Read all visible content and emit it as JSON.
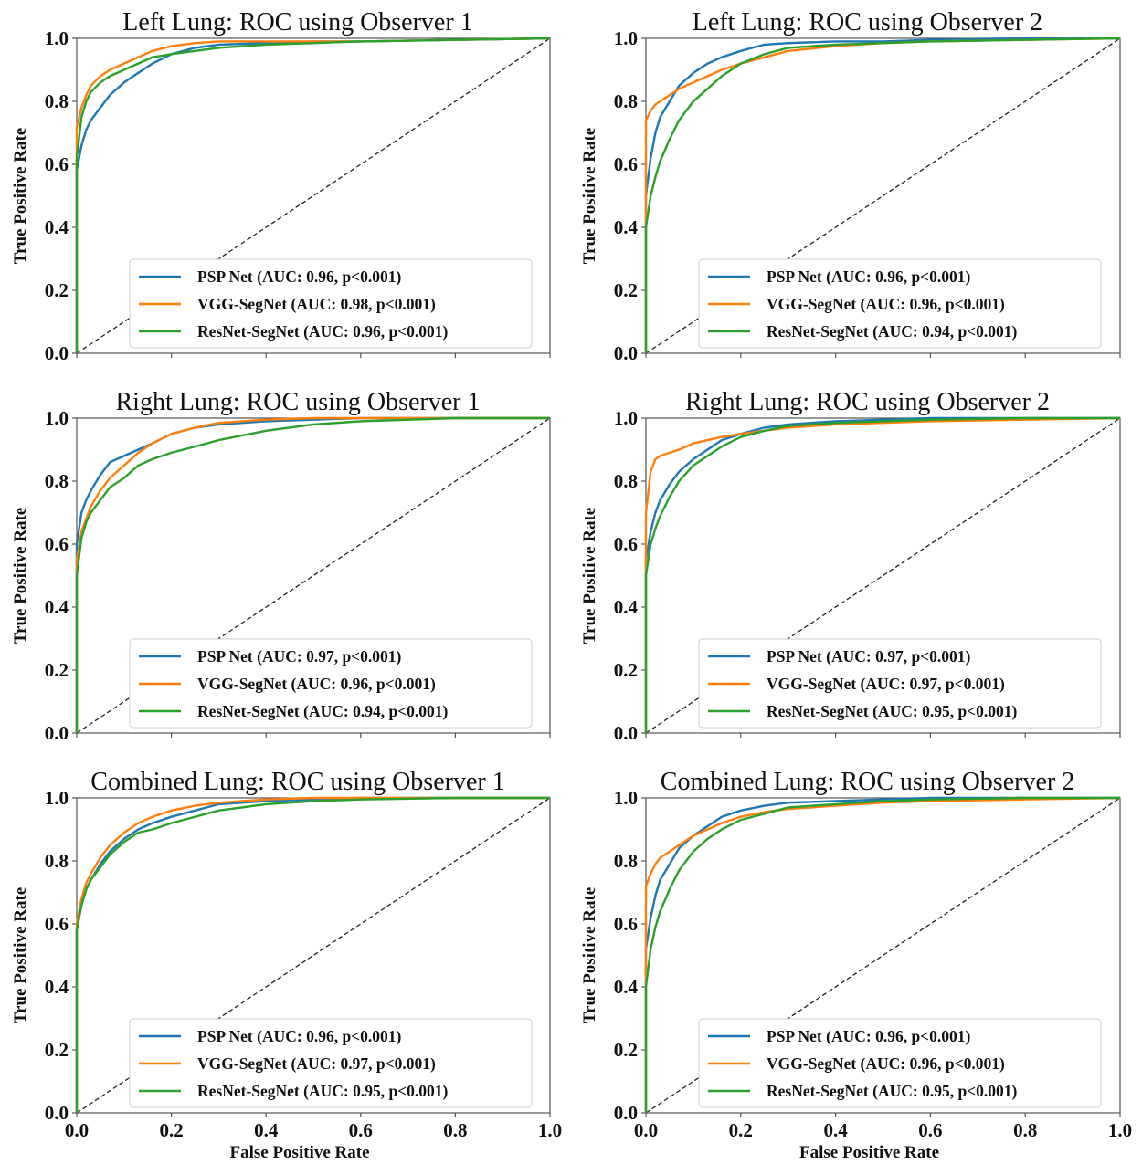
{
  "colors": {
    "psp": "#1f77b4",
    "vgg": "#ff7f0e",
    "resnet": "#2ca02c",
    "diagonal": "#222222",
    "frame": "#555555"
  },
  "axes": {
    "xlabel": "False Positive Rate",
    "ylabel": "True Positive Rate",
    "xticks": [
      "0.0",
      "0.2",
      "0.4",
      "0.6",
      "0.8",
      "1.0"
    ],
    "yticks": [
      "0.0",
      "0.2",
      "0.4",
      "0.6",
      "0.8",
      "1.0"
    ]
  },
  "chart_data": [
    {
      "type": "line",
      "title": "Left Lung: ROC using Observer 1",
      "xlim": [
        0,
        1
      ],
      "ylim": [
        0,
        1
      ],
      "xlabel": "",
      "ylabel": "True Positive Rate",
      "legend_position": "lower-right",
      "series": [
        {
          "name": "PSP Net (AUC: 0.96, p<0.001)",
          "color_key": "psp",
          "x": [
            0,
            0,
            0.01,
            0.02,
            0.03,
            0.05,
            0.07,
            0.1,
            0.13,
            0.16,
            0.2,
            0.25,
            0.3,
            0.4,
            0.5,
            0.6,
            0.8,
            1.0
          ],
          "y": [
            0,
            0.58,
            0.66,
            0.71,
            0.74,
            0.78,
            0.82,
            0.86,
            0.89,
            0.92,
            0.95,
            0.97,
            0.98,
            0.985,
            0.99,
            0.99,
            0.995,
            1.0
          ]
        },
        {
          "name": "VGG-SegNet (AUC: 0.98, p<0.001)",
          "color_key": "vgg",
          "x": [
            0,
            0,
            0.01,
            0.02,
            0.03,
            0.05,
            0.07,
            0.1,
            0.13,
            0.16,
            0.2,
            0.25,
            0.3,
            0.4,
            0.5,
            0.6,
            0.8,
            1.0
          ],
          "y": [
            0,
            0.72,
            0.78,
            0.82,
            0.85,
            0.88,
            0.9,
            0.92,
            0.94,
            0.96,
            0.975,
            0.985,
            0.99,
            0.99,
            0.99,
            0.99,
            0.995,
            1.0
          ]
        },
        {
          "name": "ResNet-SegNet (AUC: 0.96, p<0.001)",
          "color_key": "resnet",
          "x": [
            0,
            0,
            0.01,
            0.02,
            0.03,
            0.05,
            0.07,
            0.1,
            0.13,
            0.16,
            0.2,
            0.25,
            0.3,
            0.4,
            0.5,
            0.6,
            0.8,
            1.0
          ],
          "y": [
            0,
            0.62,
            0.75,
            0.8,
            0.83,
            0.86,
            0.88,
            0.9,
            0.92,
            0.94,
            0.95,
            0.96,
            0.97,
            0.98,
            0.985,
            0.99,
            0.995,
            1.0
          ]
        }
      ]
    },
    {
      "type": "line",
      "title": "Left Lung: ROC using Observer 2",
      "xlim": [
        0,
        1
      ],
      "ylim": [
        0,
        1
      ],
      "xlabel": "",
      "ylabel": "True Positive Rate",
      "legend_position": "lower-right",
      "series": [
        {
          "name": "PSP Net (AUC: 0.96, p<0.001)",
          "color_key": "psp",
          "x": [
            0,
            0,
            0.01,
            0.02,
            0.03,
            0.05,
            0.07,
            0.1,
            0.13,
            0.16,
            0.2,
            0.25,
            0.3,
            0.4,
            0.5,
            0.6,
            0.8,
            1.0
          ],
          "y": [
            0,
            0.5,
            0.62,
            0.7,
            0.75,
            0.8,
            0.85,
            0.89,
            0.92,
            0.94,
            0.96,
            0.98,
            0.985,
            0.99,
            0.99,
            0.995,
            1.0,
            1.0
          ]
        },
        {
          "name": "VGG-SegNet (AUC: 0.96, p<0.001)",
          "color_key": "vgg",
          "x": [
            0,
            0,
            0.01,
            0.02,
            0.03,
            0.05,
            0.07,
            0.1,
            0.13,
            0.16,
            0.2,
            0.25,
            0.3,
            0.4,
            0.5,
            0.6,
            0.8,
            1.0
          ],
          "y": [
            0,
            0.74,
            0.77,
            0.79,
            0.8,
            0.82,
            0.84,
            0.86,
            0.88,
            0.9,
            0.92,
            0.94,
            0.96,
            0.975,
            0.985,
            0.99,
            0.995,
            1.0
          ]
        },
        {
          "name": "ResNet-SegNet (AUC: 0.94, p<0.001)",
          "color_key": "resnet",
          "x": [
            0,
            0,
            0.01,
            0.02,
            0.03,
            0.05,
            0.07,
            0.1,
            0.13,
            0.16,
            0.2,
            0.25,
            0.3,
            0.4,
            0.5,
            0.6,
            0.8,
            1.0
          ],
          "y": [
            0,
            0.4,
            0.5,
            0.56,
            0.61,
            0.68,
            0.74,
            0.8,
            0.84,
            0.88,
            0.92,
            0.95,
            0.97,
            0.98,
            0.985,
            0.99,
            0.995,
            1.0
          ]
        }
      ]
    },
    {
      "type": "line",
      "title": "Right Lung: ROC using Observer 1",
      "xlim": [
        0,
        1
      ],
      "ylim": [
        0,
        1
      ],
      "xlabel": "",
      "ylabel": "True Positive Rate",
      "legend_position": "lower-right",
      "series": [
        {
          "name": "PSP Net (AUC: 0.97, p<0.001)",
          "color_key": "psp",
          "x": [
            0,
            0,
            0.01,
            0.02,
            0.03,
            0.05,
            0.07,
            0.1,
            0.13,
            0.16,
            0.2,
            0.25,
            0.3,
            0.4,
            0.5,
            0.6,
            0.8,
            1.0
          ],
          "y": [
            0,
            0.6,
            0.7,
            0.74,
            0.77,
            0.82,
            0.86,
            0.88,
            0.9,
            0.92,
            0.95,
            0.97,
            0.98,
            0.99,
            0.995,
            1.0,
            1.0,
            1.0
          ]
        },
        {
          "name": "VGG-SegNet (AUC: 0.96, p<0.001)",
          "color_key": "vgg",
          "x": [
            0,
            0,
            0.01,
            0.02,
            0.03,
            0.05,
            0.07,
            0.1,
            0.13,
            0.16,
            0.2,
            0.25,
            0.3,
            0.4,
            0.5,
            0.6,
            0.8,
            1.0
          ],
          "y": [
            0,
            0.55,
            0.64,
            0.68,
            0.72,
            0.77,
            0.81,
            0.85,
            0.89,
            0.92,
            0.95,
            0.97,
            0.985,
            0.995,
            1.0,
            1.0,
            1.0,
            1.0
          ]
        },
        {
          "name": "ResNet-SegNet (AUC: 0.94, p<0.001)",
          "color_key": "resnet",
          "x": [
            0,
            0,
            0.01,
            0.02,
            0.03,
            0.05,
            0.07,
            0.1,
            0.13,
            0.16,
            0.2,
            0.25,
            0.3,
            0.4,
            0.5,
            0.6,
            0.8,
            1.0
          ],
          "y": [
            0,
            0.5,
            0.62,
            0.67,
            0.7,
            0.74,
            0.78,
            0.81,
            0.85,
            0.87,
            0.89,
            0.91,
            0.93,
            0.96,
            0.98,
            0.99,
            1.0,
            1.0
          ]
        }
      ]
    },
    {
      "type": "line",
      "title": "Right Lung: ROC using Observer 2",
      "xlim": [
        0,
        1
      ],
      "ylim": [
        0,
        1
      ],
      "xlabel": "",
      "ylabel": "True Positive Rate",
      "legend_position": "lower-right",
      "series": [
        {
          "name": "PSP Net (AUC: 0.97, p<0.001)",
          "color_key": "psp",
          "x": [
            0,
            0,
            0.01,
            0.02,
            0.03,
            0.05,
            0.07,
            0.1,
            0.13,
            0.16,
            0.2,
            0.25,
            0.3,
            0.4,
            0.5,
            0.6,
            0.8,
            1.0
          ],
          "y": [
            0,
            0.55,
            0.64,
            0.7,
            0.74,
            0.79,
            0.83,
            0.87,
            0.9,
            0.93,
            0.95,
            0.97,
            0.98,
            0.99,
            0.995,
            1.0,
            1.0,
            1.0
          ]
        },
        {
          "name": "VGG-SegNet (AUC: 0.97, p<0.001)",
          "color_key": "vgg",
          "x": [
            0,
            0,
            0.01,
            0.02,
            0.03,
            0.05,
            0.07,
            0.1,
            0.13,
            0.16,
            0.2,
            0.25,
            0.3,
            0.4,
            0.5,
            0.6,
            0.8,
            1.0
          ],
          "y": [
            0,
            0.7,
            0.83,
            0.87,
            0.88,
            0.89,
            0.9,
            0.92,
            0.93,
            0.94,
            0.95,
            0.96,
            0.97,
            0.98,
            0.985,
            0.99,
            0.995,
            1.0
          ]
        },
        {
          "name": "ResNet-SegNet (AUC: 0.95, p<0.001)",
          "color_key": "resnet",
          "x": [
            0,
            0,
            0.01,
            0.02,
            0.03,
            0.05,
            0.07,
            0.1,
            0.13,
            0.16,
            0.2,
            0.25,
            0.3,
            0.4,
            0.5,
            0.6,
            0.8,
            1.0
          ],
          "y": [
            0,
            0.5,
            0.6,
            0.65,
            0.69,
            0.75,
            0.8,
            0.85,
            0.88,
            0.91,
            0.94,
            0.96,
            0.975,
            0.985,
            0.99,
            0.995,
            1.0,
            1.0
          ]
        }
      ]
    },
    {
      "type": "line",
      "title": "Combined Lung: ROC using Observer 1",
      "xlim": [
        0,
        1
      ],
      "ylim": [
        0,
        1
      ],
      "xlabel": "False Positive Rate",
      "ylabel": "True Positive Rate",
      "legend_position": "lower-right",
      "series": [
        {
          "name": "PSP Net (AUC: 0.96, p<0.001)",
          "color_key": "psp",
          "x": [
            0,
            0,
            0.01,
            0.02,
            0.03,
            0.05,
            0.07,
            0.1,
            0.13,
            0.16,
            0.2,
            0.25,
            0.3,
            0.4,
            0.5,
            0.6,
            0.8,
            1.0
          ],
          "y": [
            0,
            0.58,
            0.66,
            0.71,
            0.74,
            0.79,
            0.83,
            0.87,
            0.9,
            0.92,
            0.94,
            0.96,
            0.98,
            0.99,
            0.995,
            1.0,
            1.0,
            1.0
          ]
        },
        {
          "name": "VGG-SegNet (AUC: 0.97, p<0.001)",
          "color_key": "vgg",
          "x": [
            0,
            0,
            0.01,
            0.02,
            0.03,
            0.05,
            0.07,
            0.1,
            0.13,
            0.16,
            0.2,
            0.25,
            0.3,
            0.4,
            0.5,
            0.6,
            0.8,
            1.0
          ],
          "y": [
            0,
            0.6,
            0.68,
            0.73,
            0.76,
            0.81,
            0.85,
            0.89,
            0.92,
            0.94,
            0.96,
            0.975,
            0.985,
            0.995,
            1.0,
            1.0,
            1.0,
            1.0
          ]
        },
        {
          "name": "ResNet-SegNet (AUC: 0.95, p<0.001)",
          "color_key": "resnet",
          "x": [
            0,
            0,
            0.01,
            0.02,
            0.03,
            0.05,
            0.07,
            0.1,
            0.13,
            0.16,
            0.2,
            0.25,
            0.3,
            0.4,
            0.5,
            0.6,
            0.8,
            1.0
          ],
          "y": [
            0,
            0.58,
            0.66,
            0.71,
            0.74,
            0.78,
            0.82,
            0.86,
            0.89,
            0.9,
            0.92,
            0.94,
            0.96,
            0.98,
            0.99,
            0.995,
            1.0,
            1.0
          ]
        }
      ]
    },
    {
      "type": "line",
      "title": "Combined Lung: ROC using Observer 2",
      "xlim": [
        0,
        1
      ],
      "ylim": [
        0,
        1
      ],
      "xlabel": "False Positive Rate",
      "ylabel": "True Positive Rate",
      "legend_position": "lower-right",
      "series": [
        {
          "name": "PSP Net (AUC: 0.96, p<0.001)",
          "color_key": "psp",
          "x": [
            0,
            0,
            0.01,
            0.02,
            0.03,
            0.05,
            0.07,
            0.1,
            0.13,
            0.16,
            0.2,
            0.25,
            0.3,
            0.4,
            0.5,
            0.6,
            0.8,
            1.0
          ],
          "y": [
            0,
            0.52,
            0.62,
            0.69,
            0.74,
            0.79,
            0.84,
            0.88,
            0.91,
            0.94,
            0.96,
            0.975,
            0.985,
            0.99,
            0.995,
            1.0,
            1.0,
            1.0
          ]
        },
        {
          "name": "VGG-SegNet (AUC: 0.96, p<0.001)",
          "color_key": "vgg",
          "x": [
            0,
            0,
            0.01,
            0.02,
            0.03,
            0.05,
            0.07,
            0.1,
            0.13,
            0.16,
            0.2,
            0.25,
            0.3,
            0.4,
            0.5,
            0.6,
            0.8,
            1.0
          ],
          "y": [
            0,
            0.72,
            0.76,
            0.79,
            0.81,
            0.83,
            0.85,
            0.88,
            0.9,
            0.92,
            0.94,
            0.955,
            0.965,
            0.975,
            0.985,
            0.99,
            0.995,
            1.0
          ]
        },
        {
          "name": "ResNet-SegNet (AUC: 0.95, p<0.001)",
          "color_key": "resnet",
          "x": [
            0,
            0,
            0.01,
            0.02,
            0.03,
            0.05,
            0.07,
            0.1,
            0.13,
            0.16,
            0.2,
            0.25,
            0.3,
            0.4,
            0.5,
            0.6,
            0.8,
            1.0
          ],
          "y": [
            0,
            0.4,
            0.52,
            0.59,
            0.64,
            0.71,
            0.77,
            0.83,
            0.87,
            0.9,
            0.93,
            0.95,
            0.97,
            0.98,
            0.99,
            0.995,
            1.0,
            1.0
          ]
        }
      ]
    }
  ]
}
